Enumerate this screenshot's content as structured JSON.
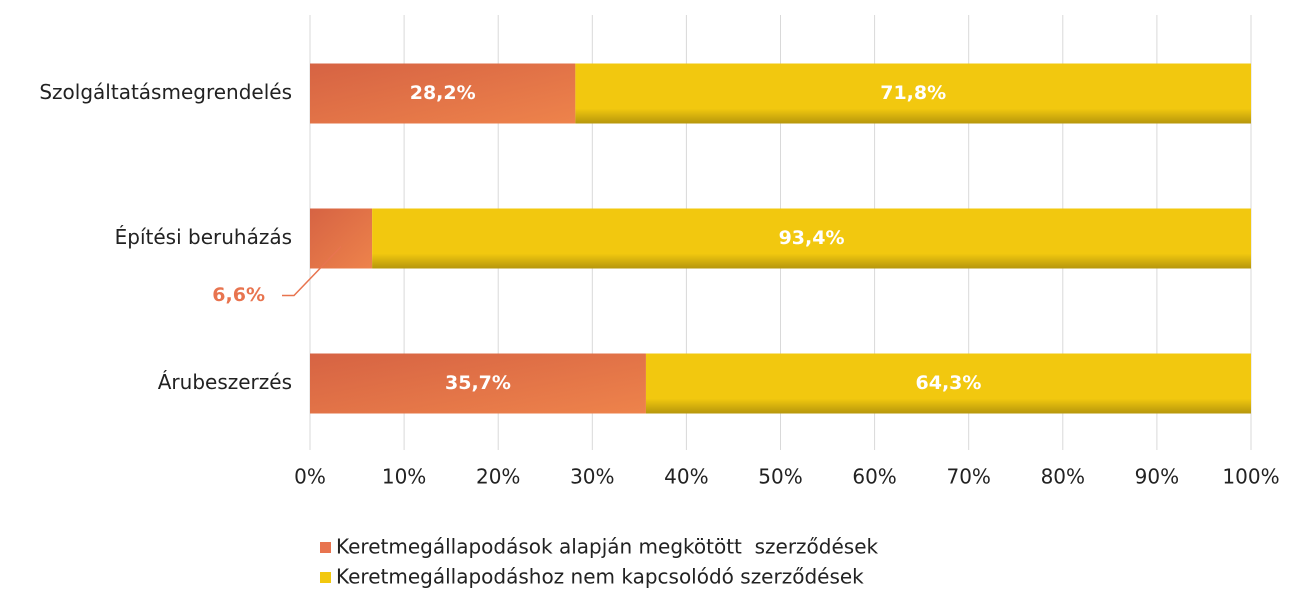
{
  "chart_data": {
    "type": "stacked_barh",
    "categories": [
      "Szolgáltatásmegrendelés",
      "Építési beruházás",
      "Árubeszerzés"
    ],
    "series": [
      {
        "name": "Keretmegállapodások alapján megkötött  szerződések",
        "color": "#e8744f",
        "values": [
          28.2,
          6.6,
          35.7
        ],
        "value_labels": [
          "28,2%",
          "6,6%",
          "35,7%"
        ]
      },
      {
        "name": "Keretmegállapodáshoz nem kapcsolódó szerződések",
        "color": "#f2c80f",
        "values": [
          71.8,
          93.4,
          64.3
        ],
        "value_labels": [
          "71,8%",
          "93,4%",
          "64,3%"
        ]
      }
    ],
    "xlim": [
      0,
      100
    ],
    "xticks": [
      {
        "value": 0,
        "label": "0%"
      },
      {
        "value": 10,
        "label": "10%"
      },
      {
        "value": 20,
        "label": "20%"
      },
      {
        "value": 30,
        "label": "30%"
      },
      {
        "value": 40,
        "label": "40%"
      },
      {
        "value": 50,
        "label": "50%"
      },
      {
        "value": 60,
        "label": "60%"
      },
      {
        "value": 70,
        "label": "70%"
      },
      {
        "value": 80,
        "label": "80%"
      },
      {
        "value": 90,
        "label": "90%"
      },
      {
        "value": 100,
        "label": "100%"
      }
    ],
    "grid": true,
    "legend": "bottom"
  }
}
